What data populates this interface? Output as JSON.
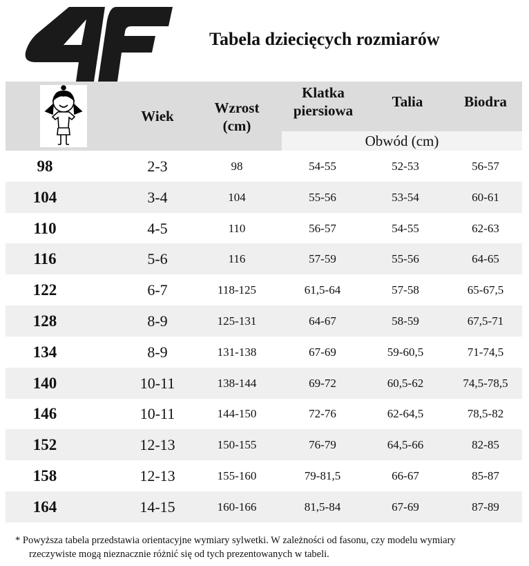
{
  "logo": {
    "text": "4F",
    "color": "#1a1a1a"
  },
  "title": "Tabela dziecięcych rozmiarów",
  "header": {
    "columns": [
      "Wiek",
      "Wzrost (cm)",
      "Klatka piersiowa",
      "Talia",
      "Biodra"
    ],
    "wzrost_l1": "Wzrost",
    "wzrost_l2": "(cm)",
    "klatka_l1": "Klatka",
    "klatka_l2": "piersiowa",
    "subheader": "Obwód (cm)"
  },
  "rows": [
    [
      "98",
      "2-3",
      "98",
      "54-55",
      "52-53",
      "56-57"
    ],
    [
      "104",
      "3-4",
      "104",
      "55-56",
      "53-54",
      "60-61"
    ],
    [
      "110",
      "4-5",
      "110",
      "56-57",
      "54-55",
      "62-63"
    ],
    [
      "116",
      "5-6",
      "116",
      "57-59",
      "55-56",
      "64-65"
    ],
    [
      "122",
      "6-7",
      "118-125",
      "61,5-64",
      "57-58",
      "65-67,5"
    ],
    [
      "128",
      "8-9",
      "125-131",
      "64-67",
      "58-59",
      "67,5-71"
    ],
    [
      "134",
      "8-9",
      "131-138",
      "67-69",
      "59-60,5",
      "71-74,5"
    ],
    [
      "140",
      "10-11",
      "138-144",
      "69-72",
      "60,5-62",
      "74,5-78,5"
    ],
    [
      "146",
      "10-11",
      "144-150",
      "72-76",
      "62-64,5",
      "78,5-82"
    ],
    [
      "152",
      "12-13",
      "150-155",
      "76-79",
      "64,5-66",
      "82-85"
    ],
    [
      "158",
      "12-13",
      "155-160",
      "79-81,5",
      "66-67",
      "85-87"
    ],
    [
      "164",
      "14-15",
      "160-166",
      "81,5-84",
      "67-69",
      "87-89"
    ]
  ],
  "note": {
    "line1": "*  Powyższa tabela przedstawia orientacyjne wymiary sylwetki. W zależności od fasonu, czy modelu wymiary",
    "line2": "rzeczywiste mogą nieznacznie różnić się od tych prezentowanych w tabeli."
  }
}
